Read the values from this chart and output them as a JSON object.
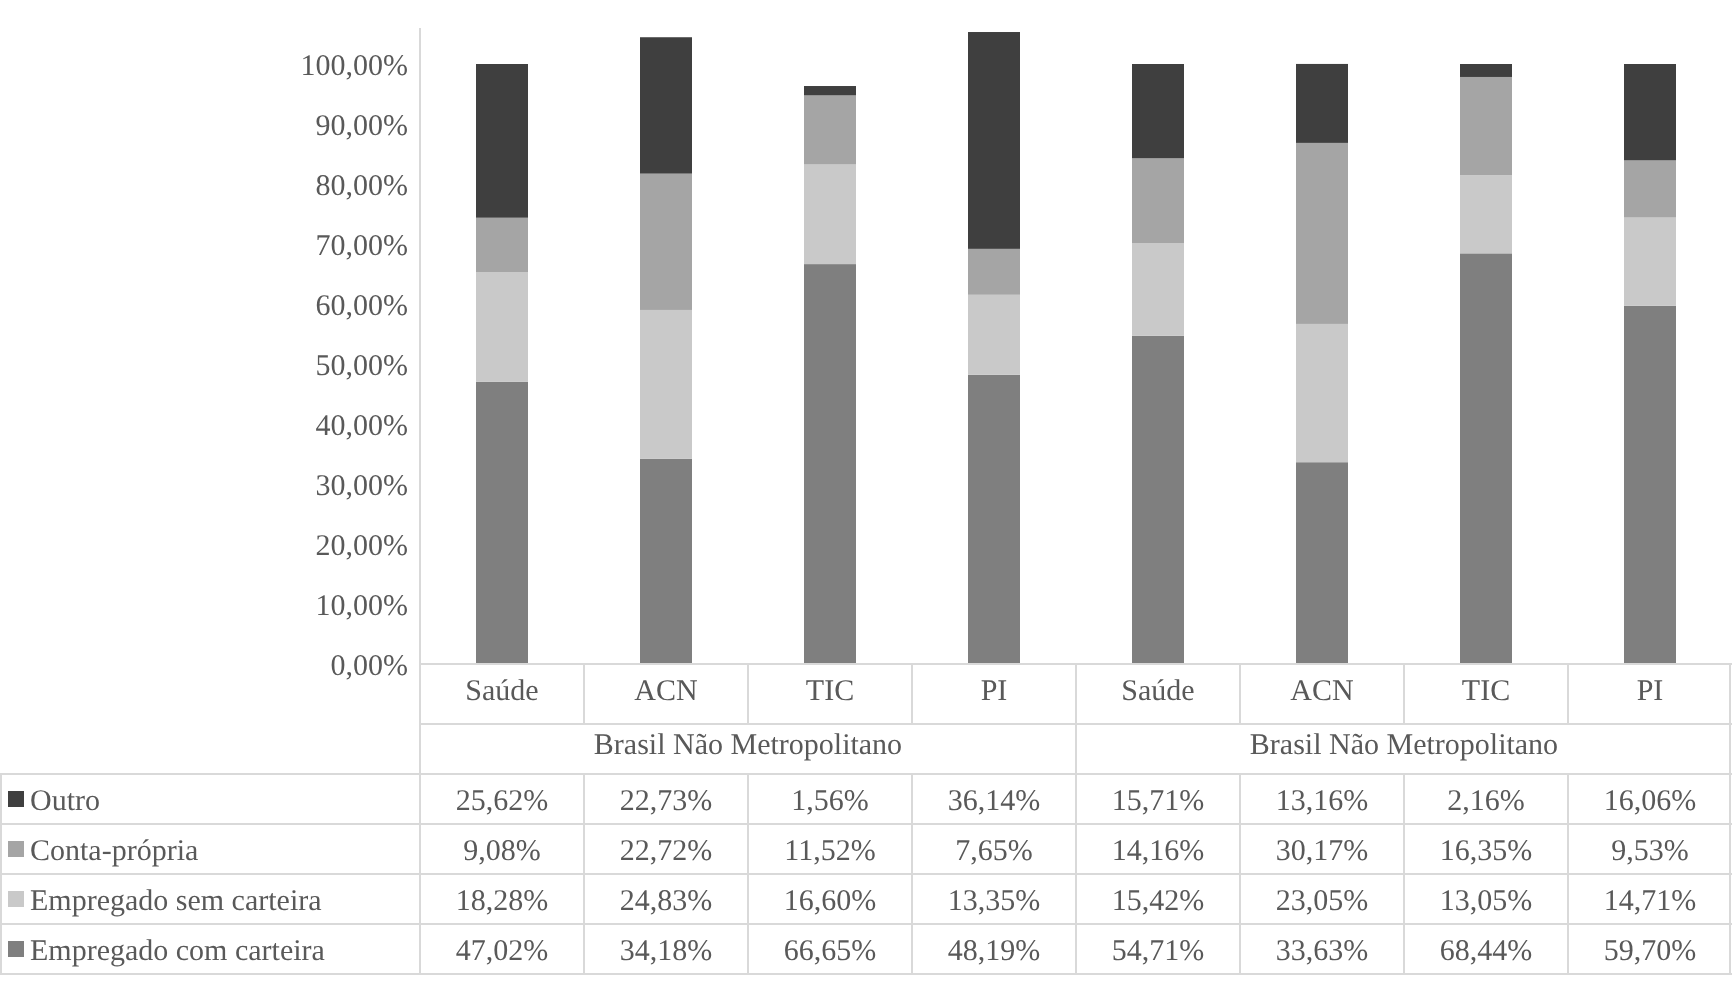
{
  "chart_data": {
    "type": "bar",
    "stacked": true,
    "legend": "bottom",
    "grid": false,
    "categories": [
      "Saúde",
      "ACN",
      "TIC",
      "PI",
      "Saúde",
      "ACN",
      "TIC",
      "PI"
    ],
    "annotations": [
      "Brasil Não Metropolitano",
      "Brasil Não Metropolitano"
    ],
    "ylim": [
      0,
      106
    ],
    "yticks": [
      {
        "value": 0,
        "label": "0,00%"
      },
      {
        "value": 10,
        "label": "10,00%"
      },
      {
        "value": 20,
        "label": "20,00%"
      },
      {
        "value": 30,
        "label": "30,00%"
      },
      {
        "value": 40,
        "label": "40,00%"
      },
      {
        "value": 50,
        "label": "50,00%"
      },
      {
        "value": 60,
        "label": "60,00%"
      },
      {
        "value": 70,
        "label": "70,00%"
      },
      {
        "value": 80,
        "label": "80,00%"
      },
      {
        "value": 90,
        "label": "90,00%"
      },
      {
        "value": 100,
        "label": "100,00%"
      }
    ],
    "series": [
      {
        "name": "Empregado com carteira",
        "color": "#7f7f7f",
        "values": [
          47.02,
          34.18,
          66.65,
          48.19,
          54.71,
          33.63,
          68.44,
          59.7
        ],
        "value_labels": [
          "47,02%",
          "34,18%",
          "66,65%",
          "48,19%",
          "54,71%",
          "33,63%",
          "68,44%",
          "59,70%"
        ]
      },
      {
        "name": "Empregado sem carteira",
        "color": "#c9c9c9",
        "values": [
          18.28,
          24.83,
          16.6,
          13.35,
          15.42,
          23.05,
          13.05,
          14.71
        ],
        "value_labels": [
          "18,28%",
          "24,83%",
          "16,60%",
          "13,35%",
          "15,42%",
          "23,05%",
          "13,05%",
          "14,71%"
        ]
      },
      {
        "name": "Conta-própria",
        "color": "#a5a5a5",
        "values": [
          9.08,
          22.72,
          11.52,
          7.65,
          14.16,
          30.17,
          16.35,
          9.53
        ],
        "value_labels": [
          "9,08%",
          "22,72%",
          "11,52%",
          "7,65%",
          "14,16%",
          "30,17%",
          "16,35%",
          "9,53%"
        ]
      },
      {
        "name": "Outro",
        "color": "#3f3f3f",
        "values": [
          25.62,
          22.73,
          1.56,
          36.14,
          15.71,
          13.16,
          2.16,
          16.06
        ],
        "value_labels": [
          "25,62%",
          "22,73%",
          "1,56%",
          "36,14%",
          "15,71%",
          "13,16%",
          "2,16%",
          "16,06%"
        ]
      }
    ]
  }
}
